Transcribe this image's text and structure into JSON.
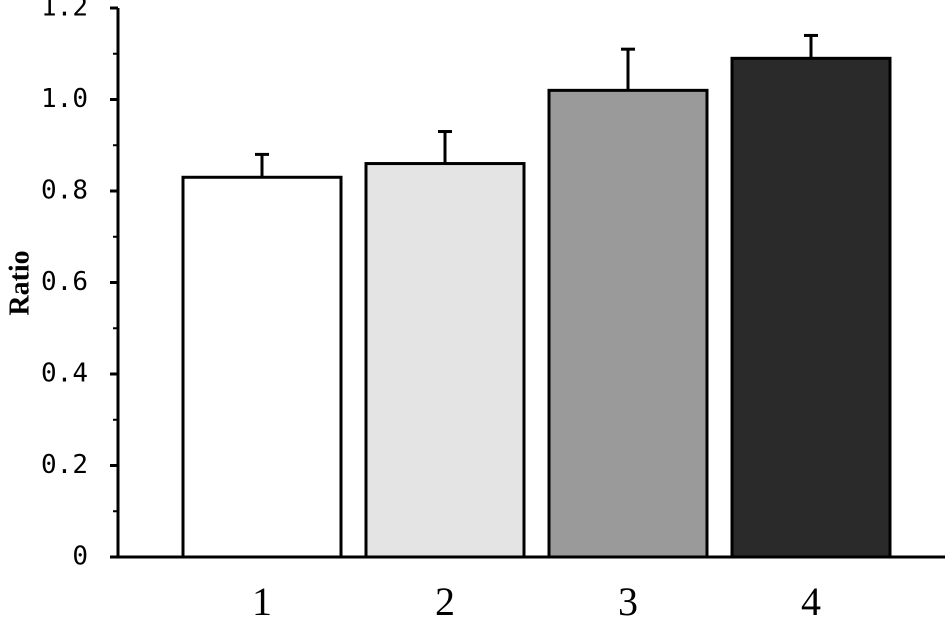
{
  "chart_data": {
    "type": "bar",
    "y_label": "Ratio",
    "categories": [
      "1",
      "2",
      "3",
      "4"
    ],
    "values": [
      0.83,
      0.86,
      1.02,
      1.09
    ],
    "errors": [
      0.05,
      0.07,
      0.09,
      0.05
    ],
    "colors": [
      "#ffffff",
      "#e4e4e4",
      "#9a9a9a",
      "#2a2a2a"
    ],
    "ylim": [
      0,
      1.2
    ],
    "yticks": [
      0,
      0.2,
      0.4,
      0.6,
      0.8,
      {
        "value": 1,
        "label": "1.0"
      },
      1.2
    ],
    "minor_yticks": [
      0.1,
      0.3,
      0.5,
      0.7,
      0.9,
      1.1
    ]
  }
}
